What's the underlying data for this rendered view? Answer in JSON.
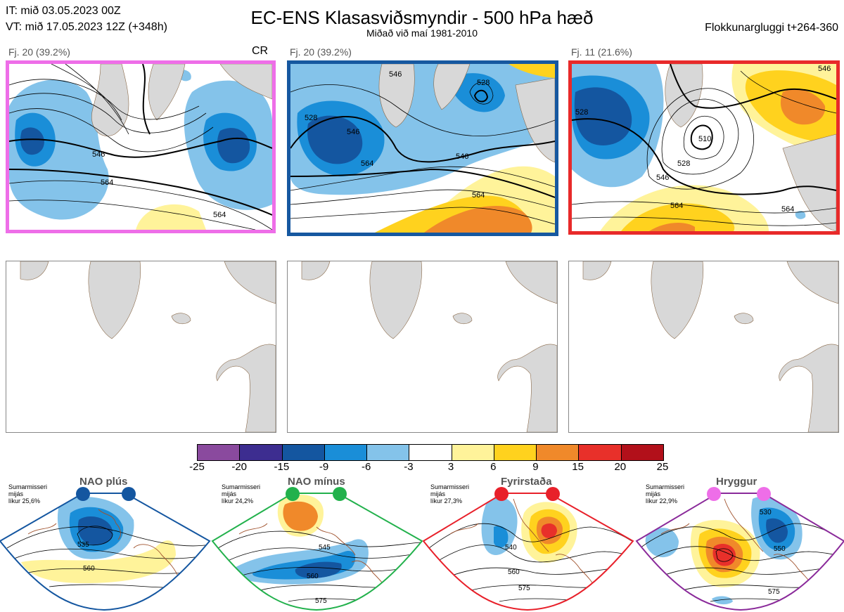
{
  "header": {
    "init_time": "IT: mið 03.05.2023 00Z",
    "valid_time": "VT: mið 17.05.2023 12Z  (+348h)",
    "title": "EC-ENS Klasasviðsmyndir - 500 hPa hæð",
    "subtitle": "Miðað við maí 1981-2010",
    "window": "Flokkunargluggi t+264-360"
  },
  "clusters": [
    {
      "label": "Fj. 20 (39.2%)",
      "tag": "CR",
      "border_color": "#ee6ee8",
      "contour_labels": [
        "546",
        "564",
        "564"
      ]
    },
    {
      "label": "Fj. 20 (39.2%)",
      "tag": "",
      "border_color": "#1658a0",
      "contour_labels": [
        "528",
        "546",
        "528",
        "546",
        "564",
        "546",
        "564"
      ]
    },
    {
      "label": "Fj. 11 (21.6%)",
      "tag": "",
      "border_color": "#e82a2a",
      "contour_labels": [
        "528",
        "510",
        "528",
        "546",
        "564",
        "546",
        "564"
      ]
    }
  ],
  "colorbar": {
    "ticks": [
      "-25",
      "-20",
      "-15",
      "-9",
      "-6",
      "-3",
      "3",
      "6",
      "9",
      "15",
      "20",
      "25"
    ],
    "colors": [
      "#8a4a9e",
      "#3d2d90",
      "#1456a0",
      "#1a8ed8",
      "#84c3ea",
      "#ffffff",
      "#fff39a",
      "#ffd21e",
      "#f0892a",
      "#e8302a",
      "#b2101a"
    ]
  },
  "regimes": [
    {
      "name": "NAO plús",
      "note": "Sumarmisseri\nmijás\nlíkur 25,6%",
      "dot_color": "#1456a0",
      "frame_color": "#1456a0",
      "labels": [
        "535",
        "560"
      ]
    },
    {
      "name": "NAO mínus",
      "note": "Sumarmisseri\nmijás\nlíkur 24,2%",
      "dot_color": "#22b14c",
      "frame_color": "#22b14c",
      "labels": [
        "545",
        "560",
        "575"
      ]
    },
    {
      "name": "Fyrirstaða",
      "note": "Sumarmisseri\nmijás\nlíkur 27,3%",
      "dot_color": "#e8202a",
      "frame_color": "#e8202a",
      "labels": [
        "540",
        "560",
        "575"
      ]
    },
    {
      "name": "Hryggur",
      "note": "Sumarmisseri\nmijás\nlíkur 22,9%",
      "dot_color": "#ee6ee8",
      "frame_color": "#8a2a9a",
      "labels": [
        "530",
        "550",
        "575"
      ]
    }
  ]
}
